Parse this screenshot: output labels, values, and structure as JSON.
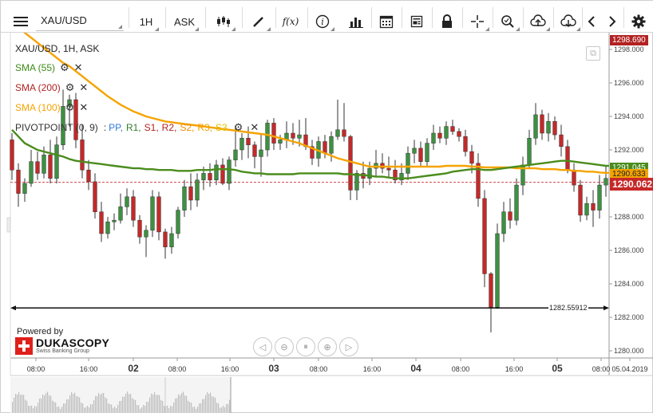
{
  "toolbar": {
    "symbol": "XAU/USD",
    "timeframe": "1H",
    "side": "ASK",
    "icons": [
      "menu-icon",
      "candles-icon",
      "draw-pencil-icon",
      "fx-icon",
      "info-icon",
      "bars-icon",
      "calendar-icon",
      "notes-icon",
      "lock-icon",
      "crosshair-icon",
      "zoom-icon",
      "upload-cloud-icon",
      "download-cloud-icon",
      "chevron-left-icon",
      "chevron-right-icon",
      "gear-icon"
    ]
  },
  "chart": {
    "title": "XAU/USD, 1H, ASK",
    "indicators": [
      {
        "label": "SMA (55)",
        "color": "#3c8a16"
      },
      {
        "label": "SMA (200)",
        "color": "#b22222"
      },
      {
        "label": "SMA (100)",
        "color": "#f5a300"
      }
    ],
    "pivot": {
      "label": "PIVOTPOINT (0, 9)",
      "sep": ":",
      "parts": [
        {
          "text": "PP,",
          "color": "#2e7bd6"
        },
        {
          "text": "R1,",
          "color": "#2e7f2e"
        },
        {
          "text": "S1,",
          "color": "#b22222"
        },
        {
          "text": "R2,",
          "color": "#b22222"
        },
        {
          "text": "S2,",
          "color": "#f08a00"
        },
        {
          "text": "R3,",
          "color": "#f5a300"
        },
        {
          "text": "S3",
          "color": "#e0c000"
        }
      ]
    },
    "price_tags": {
      "top": "1298.690",
      "sma55": "1291.045",
      "sma100": "1290.633",
      "current": "1290.062"
    },
    "level_line_label": "1282.55912",
    "powered_by": "Powered by",
    "brand": "DUKASCOPY",
    "brand_sub": "Swiss Banking Group",
    "colors": {
      "up": "#3d9140",
      "down": "#c62828",
      "sma55": "#4a8c1c",
      "sma100": "#f5a300",
      "axis": "#222222"
    }
  },
  "chart_data": {
    "type": "candlestick",
    "title": "XAU/USD, 1H, ASK",
    "ylim": [
      1279.5,
      1299.5
    ],
    "y_ticks": [
      1298.0,
      1296.0,
      1294.0,
      1292.0,
      1290.0,
      1288.0,
      1286.0,
      1284.0,
      1282.0,
      1280.0
    ],
    "x_ticks": [
      {
        "label": "08:00",
        "bold": false
      },
      {
        "label": "16:00",
        "bold": false
      },
      {
        "label": "02",
        "bold": true
      },
      {
        "label": "08:00",
        "bold": false
      },
      {
        "label": "16:00",
        "bold": false
      },
      {
        "label": "03",
        "bold": true
      },
      {
        "label": "08:00",
        "bold": false
      },
      {
        "label": "16:00",
        "bold": false
      },
      {
        "label": "04",
        "bold": true
      },
      {
        "label": "08:00",
        "bold": false
      },
      {
        "label": "16:00",
        "bold": false
      },
      {
        "label": "05",
        "bold": true
      },
      {
        "label": "08:00",
        "bold": false
      },
      {
        "label": "05.04.2019",
        "bold": false
      }
    ],
    "horizontal_level": 1282.55912,
    "dashed_level": 1290.062,
    "candles": [
      [
        1292.6,
        1293.0,
        1290.2,
        1290.8
      ],
      [
        1290.8,
        1291.2,
        1288.6,
        1289.4
      ],
      [
        1289.4,
        1290.3,
        1288.9,
        1290.0
      ],
      [
        1290.0,
        1292.0,
        1289.8,
        1291.3
      ],
      [
        1291.3,
        1291.9,
        1290.2,
        1290.6
      ],
      [
        1290.6,
        1292.2,
        1290.3,
        1291.7
      ],
      [
        1291.7,
        1292.6,
        1290.0,
        1290.3
      ],
      [
        1290.3,
        1292.8,
        1290.0,
        1292.3
      ],
      [
        1292.3,
        1295.6,
        1292.0,
        1294.6
      ],
      [
        1294.6,
        1295.3,
        1293.4,
        1295.0
      ],
      [
        1295.0,
        1295.4,
        1292.1,
        1292.6
      ],
      [
        1292.6,
        1293.5,
        1290.3,
        1290.8
      ],
      [
        1290.8,
        1291.4,
        1289.6,
        1290.1
      ],
      [
        1290.1,
        1290.6,
        1287.9,
        1288.3
      ],
      [
        1288.3,
        1288.9,
        1286.5,
        1287.0
      ],
      [
        1287.0,
        1288.0,
        1286.7,
        1287.7
      ],
      [
        1287.7,
        1288.2,
        1287.2,
        1287.8
      ],
      [
        1287.8,
        1289.4,
        1287.6,
        1288.6
      ],
      [
        1288.6,
        1289.7,
        1288.1,
        1289.2
      ],
      [
        1289.2,
        1289.6,
        1287.4,
        1287.8
      ],
      [
        1287.8,
        1288.1,
        1286.4,
        1286.8
      ],
      [
        1286.8,
        1287.5,
        1285.6,
        1287.2
      ],
      [
        1287.2,
        1289.6,
        1286.8,
        1289.2
      ],
      [
        1289.2,
        1289.5,
        1286.6,
        1287.1
      ],
      [
        1287.1,
        1287.3,
        1285.5,
        1286.2
      ],
      [
        1286.2,
        1287.4,
        1285.8,
        1287.0
      ],
      [
        1287.0,
        1288.6,
        1286.7,
        1288.4
      ],
      [
        1288.4,
        1290.2,
        1288.0,
        1289.8
      ],
      [
        1289.8,
        1290.6,
        1288.4,
        1289.0
      ],
      [
        1289.0,
        1290.6,
        1288.6,
        1290.2
      ],
      [
        1290.2,
        1291.0,
        1289.6,
        1290.6
      ],
      [
        1290.6,
        1291.2,
        1289.8,
        1290.2
      ],
      [
        1290.2,
        1291.4,
        1289.9,
        1291.1
      ],
      [
        1291.1,
        1291.5,
        1289.9,
        1290.0
      ],
      [
        1290.0,
        1291.6,
        1289.6,
        1291.4
      ],
      [
        1291.4,
        1293.4,
        1291.0,
        1292.0
      ],
      [
        1292.0,
        1293.0,
        1291.4,
        1292.7
      ],
      [
        1292.7,
        1293.4,
        1291.5,
        1292.3
      ],
      [
        1292.3,
        1292.5,
        1290.9,
        1291.6
      ],
      [
        1291.6,
        1293.0,
        1290.4,
        1292.0
      ],
      [
        1292.0,
        1293.8,
        1291.6,
        1293.6
      ],
      [
        1293.6,
        1293.9,
        1292.0,
        1292.4
      ],
      [
        1292.4,
        1292.9,
        1292.0,
        1292.6
      ],
      [
        1292.6,
        1293.7,
        1292.1,
        1293.0
      ],
      [
        1293.0,
        1293.6,
        1292.3,
        1292.7
      ],
      [
        1292.7,
        1293.8,
        1292.2,
        1292.9
      ],
      [
        1292.9,
        1293.9,
        1292.0,
        1292.2
      ],
      [
        1292.2,
        1292.6,
        1291.1,
        1291.5
      ],
      [
        1291.5,
        1292.8,
        1291.0,
        1292.5
      ],
      [
        1292.5,
        1292.9,
        1291.5,
        1291.8
      ],
      [
        1291.8,
        1293.1,
        1291.3,
        1292.8
      ],
      [
        1292.8,
        1295.0,
        1292.6,
        1293.2
      ],
      [
        1293.2,
        1294.8,
        1292.5,
        1292.8
      ],
      [
        1292.8,
        1292.9,
        1289.0,
        1289.6
      ],
      [
        1289.6,
        1290.8,
        1289.0,
        1290.6
      ],
      [
        1290.6,
        1291.3,
        1289.7,
        1290.3
      ],
      [
        1290.3,
        1291.3,
        1289.9,
        1290.9
      ],
      [
        1290.9,
        1292.0,
        1290.4,
        1291.2
      ],
      [
        1291.2,
        1291.8,
        1290.6,
        1290.9
      ],
      [
        1290.9,
        1291.6,
        1290.4,
        1290.8
      ],
      [
        1290.8,
        1291.4,
        1290.0,
        1290.2
      ],
      [
        1290.2,
        1291.2,
        1289.9,
        1290.6
      ],
      [
        1290.6,
        1292.2,
        1290.2,
        1291.8
      ],
      [
        1291.8,
        1292.6,
        1291.2,
        1292.1
      ],
      [
        1292.1,
        1292.5,
        1291.0,
        1291.3
      ],
      [
        1291.3,
        1292.7,
        1291.0,
        1292.4
      ],
      [
        1292.4,
        1293.5,
        1292.0,
        1293.0
      ],
      [
        1293.0,
        1293.4,
        1292.4,
        1292.7
      ],
      [
        1292.7,
        1293.7,
        1292.3,
        1293.4
      ],
      [
        1293.4,
        1293.8,
        1292.9,
        1293.1
      ],
      [
        1293.1,
        1293.3,
        1292.5,
        1292.8
      ],
      [
        1292.8,
        1293.2,
        1291.6,
        1291.9
      ],
      [
        1291.9,
        1292.3,
        1290.6,
        1291.2
      ],
      [
        1291.2,
        1291.8,
        1288.6,
        1289.1
      ],
      [
        1289.1,
        1289.6,
        1283.8,
        1284.6
      ],
      [
        1284.6,
        1284.7,
        1281.1,
        1282.6
      ],
      [
        1282.6,
        1287.6,
        1282.5,
        1287.0
      ],
      [
        1287.0,
        1288.9,
        1286.5,
        1288.3
      ],
      [
        1288.3,
        1289.1,
        1287.3,
        1287.8
      ],
      [
        1287.8,
        1290.3,
        1287.5,
        1289.9
      ],
      [
        1289.9,
        1291.6,
        1289.3,
        1291.1
      ],
      [
        1291.1,
        1293.2,
        1290.9,
        1292.7
      ],
      [
        1292.7,
        1294.8,
        1292.3,
        1294.1
      ],
      [
        1294.1,
        1294.4,
        1292.6,
        1293.0
      ],
      [
        1293.0,
        1294.2,
        1292.5,
        1293.7
      ],
      [
        1293.7,
        1294.0,
        1292.6,
        1292.9
      ],
      [
        1292.9,
        1293.5,
        1291.6,
        1292.2
      ],
      [
        1292.2,
        1292.6,
        1290.6,
        1290.8
      ],
      [
        1290.8,
        1291.2,
        1289.5,
        1289.9
      ],
      [
        1289.9,
        1290.2,
        1287.7,
        1288.1
      ],
      [
        1288.1,
        1289.2,
        1287.8,
        1288.8
      ],
      [
        1288.8,
        1289.6,
        1287.4,
        1288.4
      ],
      [
        1288.4,
        1290.5,
        1287.9,
        1289.9
      ],
      [
        1289.9,
        1291.0,
        1289.2,
        1290.3
      ]
    ],
    "sma55": [
      1293.2,
      1292.8,
      1292.4,
      1292.2,
      1292.0,
      1291.9,
      1291.8,
      1291.7,
      1291.6,
      1291.45,
      1291.35,
      1291.3,
      1291.25,
      1291.2,
      1291.15,
      1291.1,
      1291.05,
      1291.0,
      1290.95,
      1290.9,
      1290.9,
      1290.85,
      1290.85,
      1290.8,
      1290.8,
      1290.8,
      1290.75,
      1290.75,
      1290.75,
      1290.8,
      1290.8,
      1290.8,
      1290.85,
      1290.85,
      1290.85,
      1290.8,
      1290.7,
      1290.65,
      1290.6,
      1290.6,
      1290.55,
      1290.55,
      1290.55,
      1290.55,
      1290.55,
      1290.6,
      1290.6,
      1290.6,
      1290.6,
      1290.6,
      1290.6,
      1290.6,
      1290.55,
      1290.55,
      1290.5,
      1290.5,
      1290.45,
      1290.4,
      1290.4,
      1290.35,
      1290.3,
      1290.3,
      1290.3,
      1290.35,
      1290.4,
      1290.45,
      1290.5,
      1290.55,
      1290.6,
      1290.7,
      1290.75,
      1290.8,
      1290.85,
      1290.85,
      1290.8,
      1290.8,
      1290.85,
      1290.9,
      1290.95,
      1291.0,
      1291.05,
      1291.1,
      1291.15,
      1291.2,
      1291.25,
      1291.3,
      1291.35,
      1291.35,
      1291.3,
      1291.25,
      1291.2,
      1291.15,
      1291.1,
      1291.05
    ],
    "sma100": [
      1299.5,
      1299.3,
      1299.0,
      1298.7,
      1298.4,
      1298.1,
      1297.8,
      1297.5,
      1297.2,
      1297.0,
      1296.7,
      1296.4,
      1296.1,
      1295.8,
      1295.5,
      1295.2,
      1294.95,
      1294.7,
      1294.5,
      1294.3,
      1294.15,
      1294.0,
      1293.9,
      1293.8,
      1293.7,
      1293.65,
      1293.6,
      1293.55,
      1293.5,
      1293.45,
      1293.4,
      1293.35,
      1293.3,
      1293.25,
      1293.2,
      1293.15,
      1293.1,
      1293.05,
      1293.0,
      1292.95,
      1292.9,
      1292.8,
      1292.7,
      1292.6,
      1292.5,
      1292.4,
      1292.25,
      1292.1,
      1291.95,
      1291.8,
      1291.65,
      1291.5,
      1291.4,
      1291.3,
      1291.2,
      1291.1,
      1291.0,
      1291.0,
      1291.0,
      1291.0,
      1291.0,
      1291.0,
      1291.0,
      1291.0,
      1291.0,
      1291.0,
      1291.0,
      1291.0,
      1291.05,
      1291.05,
      1291.05,
      1291.05,
      1291.0,
      1291.0,
      1290.95,
      1290.95,
      1290.95,
      1290.95,
      1290.95,
      1290.9,
      1290.9,
      1290.9,
      1290.9,
      1290.85,
      1290.85,
      1290.85,
      1290.8,
      1290.8,
      1290.75,
      1290.75,
      1290.7,
      1290.7,
      1290.65,
      1290.63
    ]
  }
}
